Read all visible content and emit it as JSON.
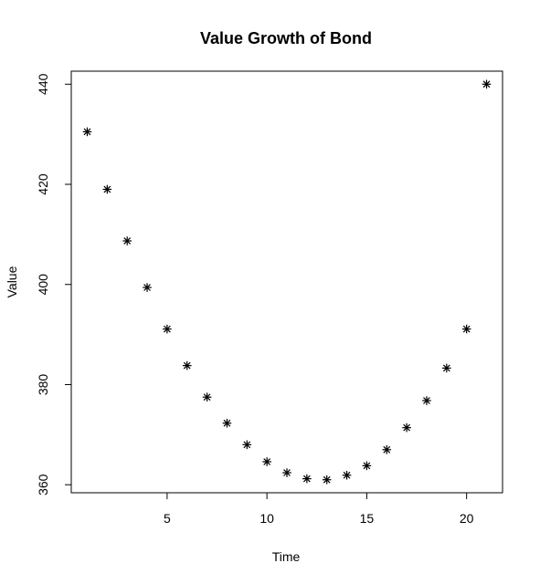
{
  "chart_data": {
    "type": "scatter",
    "title": "Value Growth of Bond",
    "xlabel": "Time",
    "ylabel": "Value",
    "x": [
      1,
      2,
      3,
      4,
      5,
      6,
      7,
      8,
      9,
      10,
      11,
      12,
      13,
      14,
      15,
      16,
      17,
      18,
      19,
      20,
      21
    ],
    "y": [
      430.5,
      419.0,
      408.7,
      399.4,
      391.1,
      383.8,
      377.5,
      372.3,
      368.0,
      364.6,
      362.4,
      361.2,
      361.0,
      361.9,
      363.8,
      367.0,
      371.4,
      376.8,
      383.3,
      391.1,
      440.0
    ],
    "xlim": [
      0.2,
      21.8
    ],
    "ylim": [
      358.4,
      442.6
    ],
    "x_ticks": [
      5,
      10,
      15,
      20
    ],
    "x_tick_labels": [
      "5",
      "10",
      "15",
      "20"
    ],
    "y_ticks": [
      360,
      380,
      400,
      420,
      440
    ],
    "y_tick_labels": [
      "360",
      "380",
      "400",
      "420",
      "440"
    ],
    "marker": "asterisk",
    "marker_color": "#000000",
    "grid": false,
    "legend": "none"
  }
}
